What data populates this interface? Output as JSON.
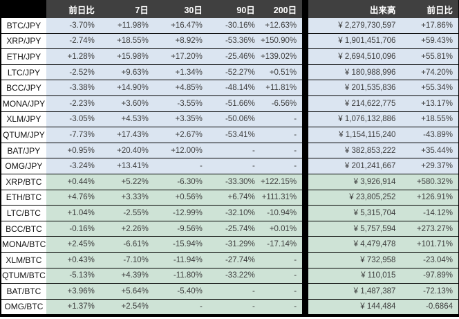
{
  "colors": {
    "header_bg": "#404040",
    "corner_bg": "#000000",
    "jpy_row_bg": "#dbe5f1",
    "btc_row_bg": "#cee3d6",
    "divider": "#000000",
    "text": "#3d3d3d"
  },
  "chart_data": {
    "type": "table",
    "columns": [
      "",
      "前日比",
      "7日",
      "30日",
      "90日",
      "200日",
      "出来高",
      "前日比"
    ],
    "rows": [
      [
        "BTC/JPY",
        "-3.70%",
        "+11.98%",
        "+16.47%",
        "-30.16%",
        "+12.63%",
        "¥ 2,279,730,597",
        "+17.86%"
      ],
      [
        "XRP/JPY",
        "-2.74%",
        "+18.55%",
        "+8.92%",
        "-53.36%",
        "+150.90%",
        "¥ 1,901,451,706",
        "+59.43%"
      ],
      [
        "ETH/JPY",
        "+1.28%",
        "+15.98%",
        "+17.20%",
        "-25.46%",
        "+139.02%",
        "¥ 2,694,510,096",
        "+55.81%"
      ],
      [
        "LTC/JPY",
        "-2.52%",
        "+9.63%",
        "+1.34%",
        "-52.27%",
        "+0.51%",
        "¥ 180,988,996",
        "+74.20%"
      ],
      [
        "BCC/JPY",
        "-3.38%",
        "+14.90%",
        "+4.85%",
        "-48.14%",
        "+11.81%",
        "¥ 201,535,836",
        "+55.34%"
      ],
      [
        "MONA/JPY",
        "-2.23%",
        "+3.60%",
        "-3.55%",
        "-51.66%",
        "-6.56%",
        "¥ 214,622,775",
        "+13.17%"
      ],
      [
        "XLM/JPY",
        "-3.05%",
        "+4.53%",
        "+3.35%",
        "-50.06%",
        "-",
        "¥ 1,076,132,886",
        "+18.55%"
      ],
      [
        "QTUM/JPY",
        "-7.73%",
        "+17.43%",
        "+2.67%",
        "-53.41%",
        "-",
        "¥ 1,154,115,240",
        "-43.89%"
      ],
      [
        "BAT/JPY",
        "+0.95%",
        "+20.40%",
        "+12.00%",
        "-",
        "-",
        "¥ 382,853,222",
        "+35.44%"
      ],
      [
        "OMG/JPY",
        "-3.24%",
        "+13.41%",
        "-",
        "-",
        "-",
        "¥ 201,241,667",
        "+29.37%"
      ],
      [
        "XRP/BTC",
        "+0.44%",
        "+5.22%",
        "-6.30%",
        "-33.30%",
        "+122.15%",
        "¥ 3,926,914",
        "+580.32%"
      ],
      [
        "ETH/BTC",
        "+4.76%",
        "+3.33%",
        "+0.56%",
        "+6.74%",
        "+111.31%",
        "¥ 23,805,252",
        "+126.91%"
      ],
      [
        "LTC/BTC",
        "+1.04%",
        "-2.55%",
        "-12.99%",
        "-32.10%",
        "-10.94%",
        "¥ 5,315,704",
        "-14.12%"
      ],
      [
        "BCC/BTC",
        "-0.16%",
        "+2.26%",
        "-9.56%",
        "-25.74%",
        "+0.01%",
        "¥ 5,757,594",
        "+273.27%"
      ],
      [
        "MONA/BTC",
        "+2.45%",
        "-6.61%",
        "-15.94%",
        "-31.29%",
        "-17.14%",
        "¥ 4,479,478",
        "+101.71%"
      ],
      [
        "XLM/BTC",
        "+0.43%",
        "-7.10%",
        "-11.94%",
        "-27.74%",
        "-",
        "¥ 732,958",
        "-23.04%"
      ],
      [
        "QTUM/BTC",
        "-5.13%",
        "+4.39%",
        "-11.80%",
        "-33.22%",
        "-",
        "¥ 110,015",
        "-97.89%"
      ],
      [
        "BAT/BTC",
        "+3.96%",
        "+5.64%",
        "-5.40%",
        "-",
        "-",
        "¥ 1,487,387",
        "-72.13%"
      ],
      [
        "OMG/BTC",
        "+1.37%",
        "+2.54%",
        "-",
        "-",
        "-",
        "¥ 144,484",
        "-0.6864"
      ]
    ]
  }
}
